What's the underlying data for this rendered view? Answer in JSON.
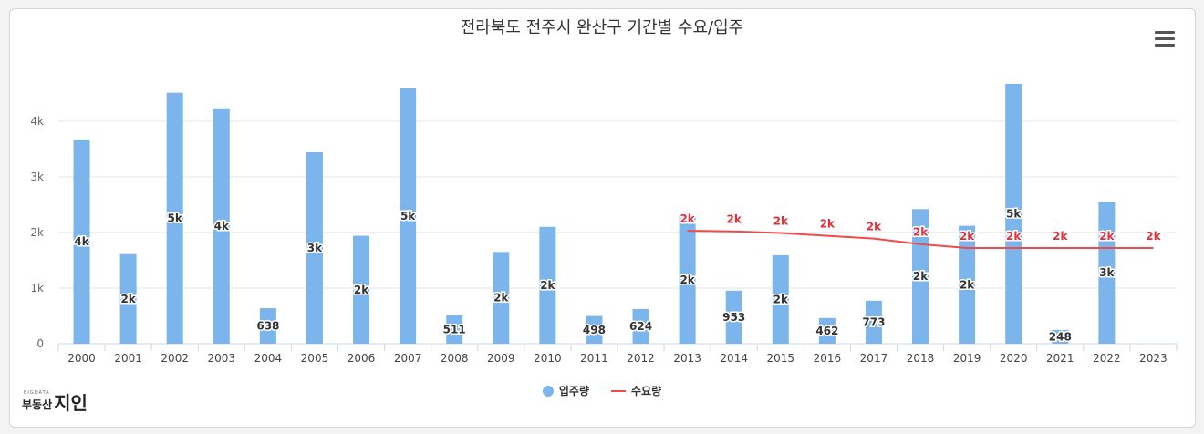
{
  "title": "전라북도 전주시 완산구 기간별 수요/입주",
  "menu_icon": "hamburger-menu-icon",
  "brand": {
    "small": "BIGDATA",
    "name_a": "부동산",
    "name_b": "지인"
  },
  "colors": {
    "bar": "#7cb5ec",
    "line": "#f04b4b",
    "label_red": "#e0303a"
  },
  "chart_data": {
    "type": "bar",
    "categories": [
      "2000",
      "2001",
      "2002",
      "2003",
      "2004",
      "2005",
      "2006",
      "2007",
      "2008",
      "2009",
      "2010",
      "2011",
      "2012",
      "2013",
      "2014",
      "2015",
      "2016",
      "2017",
      "2018",
      "2019",
      "2020",
      "2021",
      "2022",
      "2023"
    ],
    "ylim": [
      0,
      4800
    ],
    "yticks": [
      0,
      1000,
      2000,
      3000,
      4000
    ],
    "ytick_labels": [
      "0",
      "1k",
      "2k",
      "3k",
      "4k"
    ],
    "series": [
      {
        "name": "입주량",
        "type": "bar",
        "values": [
          3670,
          1610,
          4510,
          4230,
          638,
          3440,
          1940,
          4590,
          511,
          1650,
          2100,
          498,
          624,
          2290,
          953,
          1590,
          462,
          773,
          2420,
          2120,
          4670,
          248,
          2550,
          null
        ],
        "labels": [
          "4k",
          "2k",
          "5k",
          "4k",
          "638",
          "3k",
          "2k",
          "5k",
          "511",
          "2k",
          "2k",
          "498",
          "624",
          "2k",
          "953",
          "2k",
          "462",
          "773",
          "2k",
          "2k",
          "5k",
          "248",
          "3k",
          ""
        ]
      },
      {
        "name": "수요량",
        "type": "line",
        "values": [
          null,
          null,
          null,
          null,
          null,
          null,
          null,
          null,
          null,
          null,
          null,
          null,
          null,
          2030,
          2020,
          1990,
          1940,
          1890,
          1790,
          1720,
          1720,
          1720,
          1720,
          1720
        ],
        "labels": [
          "",
          "",
          "",
          "",
          "",
          "",
          "",
          "",
          "",
          "",
          "",
          "",
          "",
          "2k",
          "2k",
          "2k",
          "2k",
          "2k",
          "2k",
          "2k",
          "2k",
          "2k",
          "2k",
          "2k"
        ]
      }
    ],
    "legend": [
      "입주량",
      "수요량"
    ],
    "legend_position": "bottom-center"
  }
}
